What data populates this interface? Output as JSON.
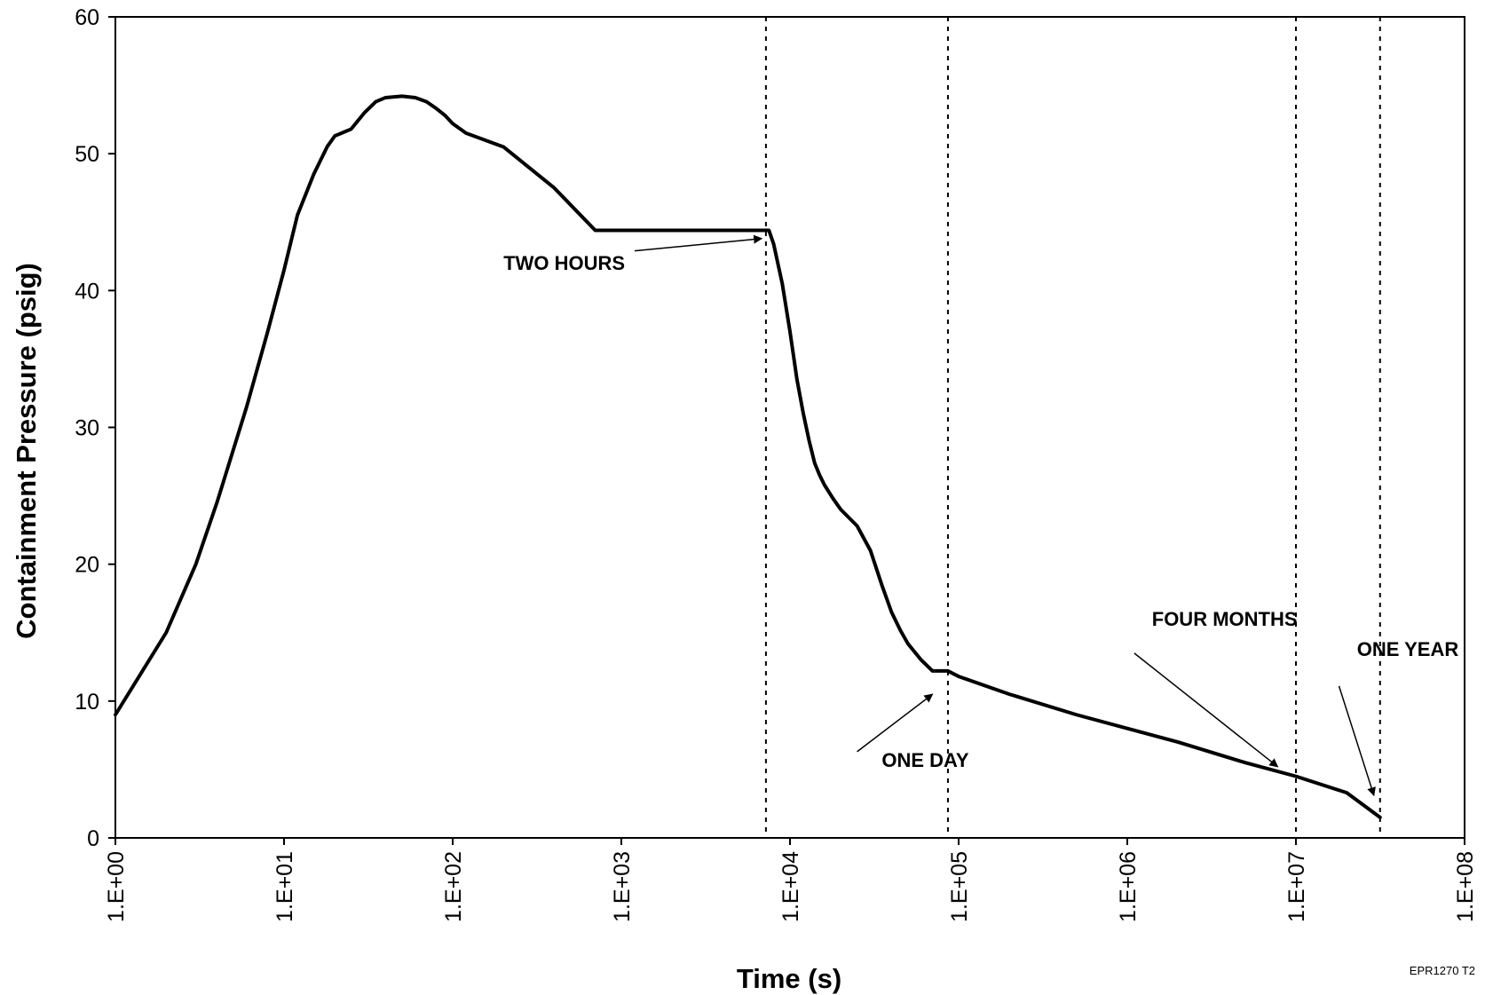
{
  "chart_data": {
    "type": "line",
    "xlabel": "Time (s)",
    "ylabel": "Containment Pressure (psig)",
    "xscale": "log",
    "xlim": [
      1,
      100000000
    ],
    "ylim": [
      0,
      60
    ],
    "xticks": [
      1,
      10,
      100,
      1000,
      10000,
      100000,
      1000000,
      10000000,
      100000000
    ],
    "xtick_labels": [
      "1.E+00",
      "1.E+01",
      "1.E+02",
      "1.E+03",
      "1.E+04",
      "1.E+05",
      "1.E+06",
      "1.E+07",
      "1.E+08"
    ],
    "yticks": [
      0,
      10,
      20,
      30,
      40,
      50,
      60
    ],
    "ytick_labels": [
      "0",
      "10",
      "20",
      "30",
      "40",
      "50",
      "60"
    ],
    "grid": false,
    "legend": false,
    "line_color": "#000000",
    "series": [
      {
        "x": [
          1,
          2,
          3,
          4,
          6,
          8,
          10,
          12,
          15,
          18,
          20,
          25,
          30,
          35,
          40,
          50,
          60,
          70,
          80,
          90,
          100,
          120,
          200,
          400,
          700,
          7200,
          7500,
          8000,
          9000,
          10000,
          11000,
          12000,
          13000,
          14000,
          15000,
          16000,
          18000,
          20000,
          25000,
          30000,
          35000,
          40000,
          45000,
          50000,
          60000,
          70000,
          86400,
          100000,
          200000,
          500000,
          1000000,
          2000000,
          5000000,
          10000000,
          20000000,
          31536000
        ],
        "y": [
          9,
          15,
          20,
          24.5,
          31.5,
          37,
          41.5,
          45.5,
          48.5,
          50.5,
          51.3,
          51.8,
          53,
          53.8,
          54.1,
          54.2,
          54.1,
          53.8,
          53.3,
          52.8,
          52.2,
          51.5,
          50.5,
          47.5,
          44.4,
          44.4,
          44.4,
          43.4,
          40.5,
          37,
          33.5,
          31,
          29,
          27.4,
          26.5,
          25.8,
          24.8,
          24,
          22.8,
          21,
          18.5,
          16.5,
          15.2,
          14.2,
          13,
          12.2,
          12.2,
          11.8,
          10.5,
          9,
          8,
          7,
          5.5,
          4.5,
          3.3,
          1.5
        ]
      }
    ],
    "reference_lines": [
      7200,
      86400,
      10000000,
      31536000
    ],
    "annotations": [
      {
        "text": "TWO HOURS",
        "label_at": [
          200,
          41.5
        ],
        "arrow_from": [
          1200,
          42.9
        ],
        "arrow_to": [
          6800,
          43.8
        ]
      },
      {
        "text": "ONE DAY",
        "label_at": [
          35000,
          5.2
        ],
        "arrow_from": [
          25000,
          6.3
        ],
        "arrow_to": [
          70000,
          10.5
        ]
      },
      {
        "text": "FOUR MONTHS",
        "label_at": [
          1400000,
          15.5
        ],
        "arrow_from": [
          1100000,
          13.5
        ],
        "arrow_to": [
          7800000,
          5.2
        ]
      },
      {
        "text": "ONE YEAR",
        "label_at": [
          23000000,
          13.3
        ],
        "arrow_from": [
          18000000,
          11.1
        ],
        "arrow_to": [
          29000000,
          3.1
        ]
      }
    ],
    "figure_id": "EPR1270 T2"
  }
}
